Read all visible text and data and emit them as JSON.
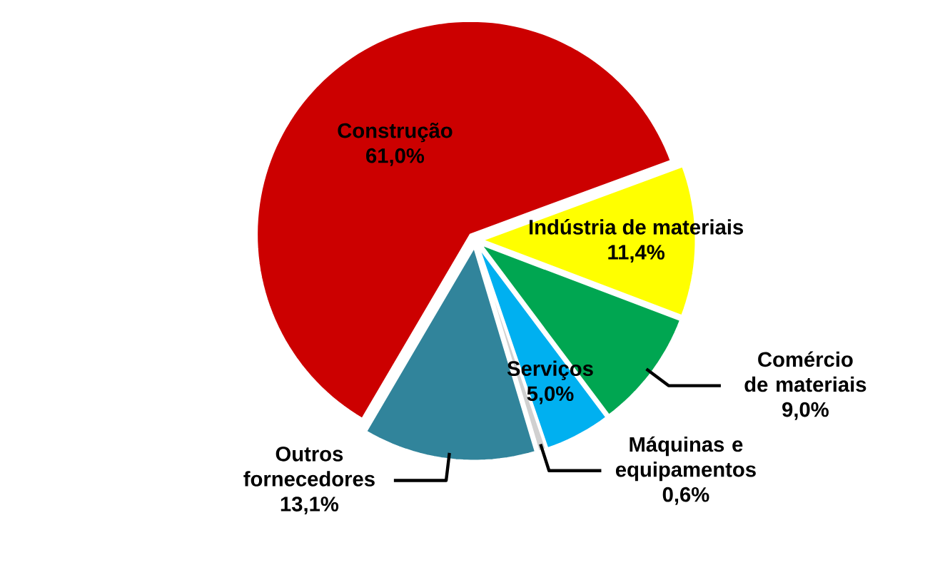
{
  "chart_data": {
    "type": "pie",
    "categories": [
      "Construção",
      "Indústria de materiais",
      "Comércio de materiais",
      "Serviços",
      "Máquinas e equipamentos",
      "Outros fornecedores"
    ],
    "values": [
      61.0,
      11.4,
      9.0,
      5.0,
      0.6,
      13.1
    ],
    "value_labels": [
      "61,0%",
      "11,4%",
      "9,0%",
      "5,0%",
      "0,6%",
      "13,1%"
    ],
    "colors": [
      "#cc0000",
      "#ffff00",
      "#00a651",
      "#00b0f0",
      "#d0d0d0",
      "#31849b"
    ]
  }
}
